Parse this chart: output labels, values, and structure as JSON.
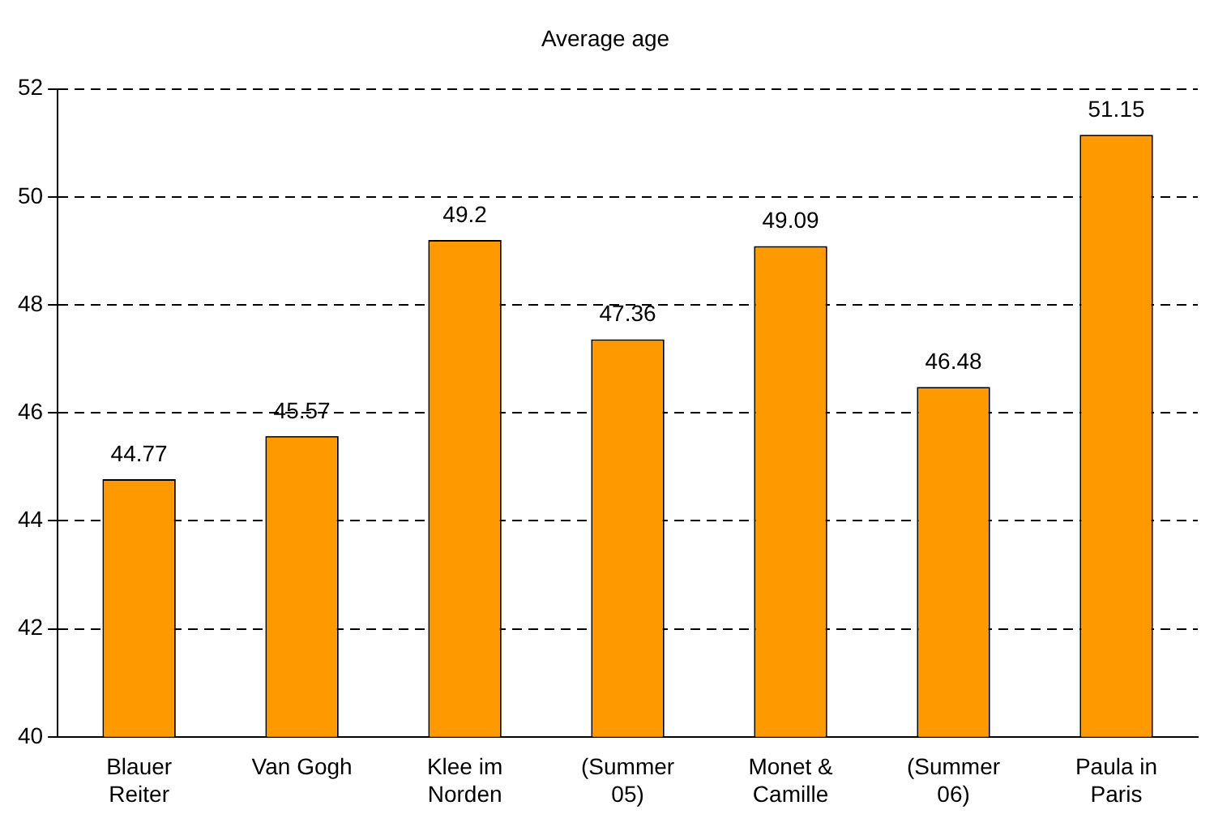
{
  "chart_data": {
    "type": "bar",
    "title": "Average age",
    "categories": [
      "Blauer Reiter",
      "Van Gogh",
      "Klee im Norden",
      "(Summer 05)",
      "Monet & Camille",
      "(Summer 06)",
      "Paula in Paris"
    ],
    "values": [
      44.77,
      45.57,
      49.2,
      47.36,
      49.09,
      46.48,
      51.15
    ],
    "color": "#ff9900",
    "ylim": [
      40,
      52
    ],
    "yticks": [
      40,
      42,
      44,
      46,
      48,
      50,
      52
    ],
    "grid": "y",
    "data_labels": true,
    "legend": false
  }
}
